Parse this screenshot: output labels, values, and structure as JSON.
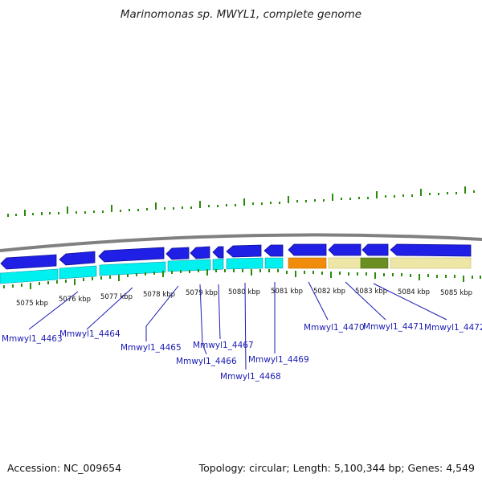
{
  "title": "Marinomonas sp. MWYL1, complete genome",
  "footer": {
    "accession": "Accession: NC_009654",
    "summary": "Topology: circular; Length: 5,100,344 bp; Genes: 4,549"
  },
  "colors": {
    "backbone": "#808080",
    "cds_reverse": "#1f1fe6",
    "cds_forward": "#00f0f0",
    "gene_highlight_orange": "#f08c0a",
    "gene_highlight_tan": "#eee6a6",
    "gene_highlight_olive": "#6b8e23",
    "tick": "#2a8a0a",
    "label": "#1a1ab4"
  },
  "scale": {
    "unit": "kbp",
    "ticks": [
      "5075 kbp",
      "5076 kbp",
      "5077 kbp",
      "5078 kbp",
      "5079 kbp",
      "5080 kbp",
      "5081 kbp",
      "5082 kbp",
      "5083 kbp",
      "5084 kbp",
      "5085 kbp"
    ]
  },
  "genes": [
    "Mmwyl1_4463",
    "Mmwyl1_4464",
    "Mmwyl1_4465",
    "Mmwyl1_4466",
    "Mmwyl1_4467",
    "Mmwyl1_4468",
    "Mmwyl1_4469",
    "Mmwyl1_4470",
    "Mmwyl1_4471",
    "Mmwyl1_4472"
  ]
}
